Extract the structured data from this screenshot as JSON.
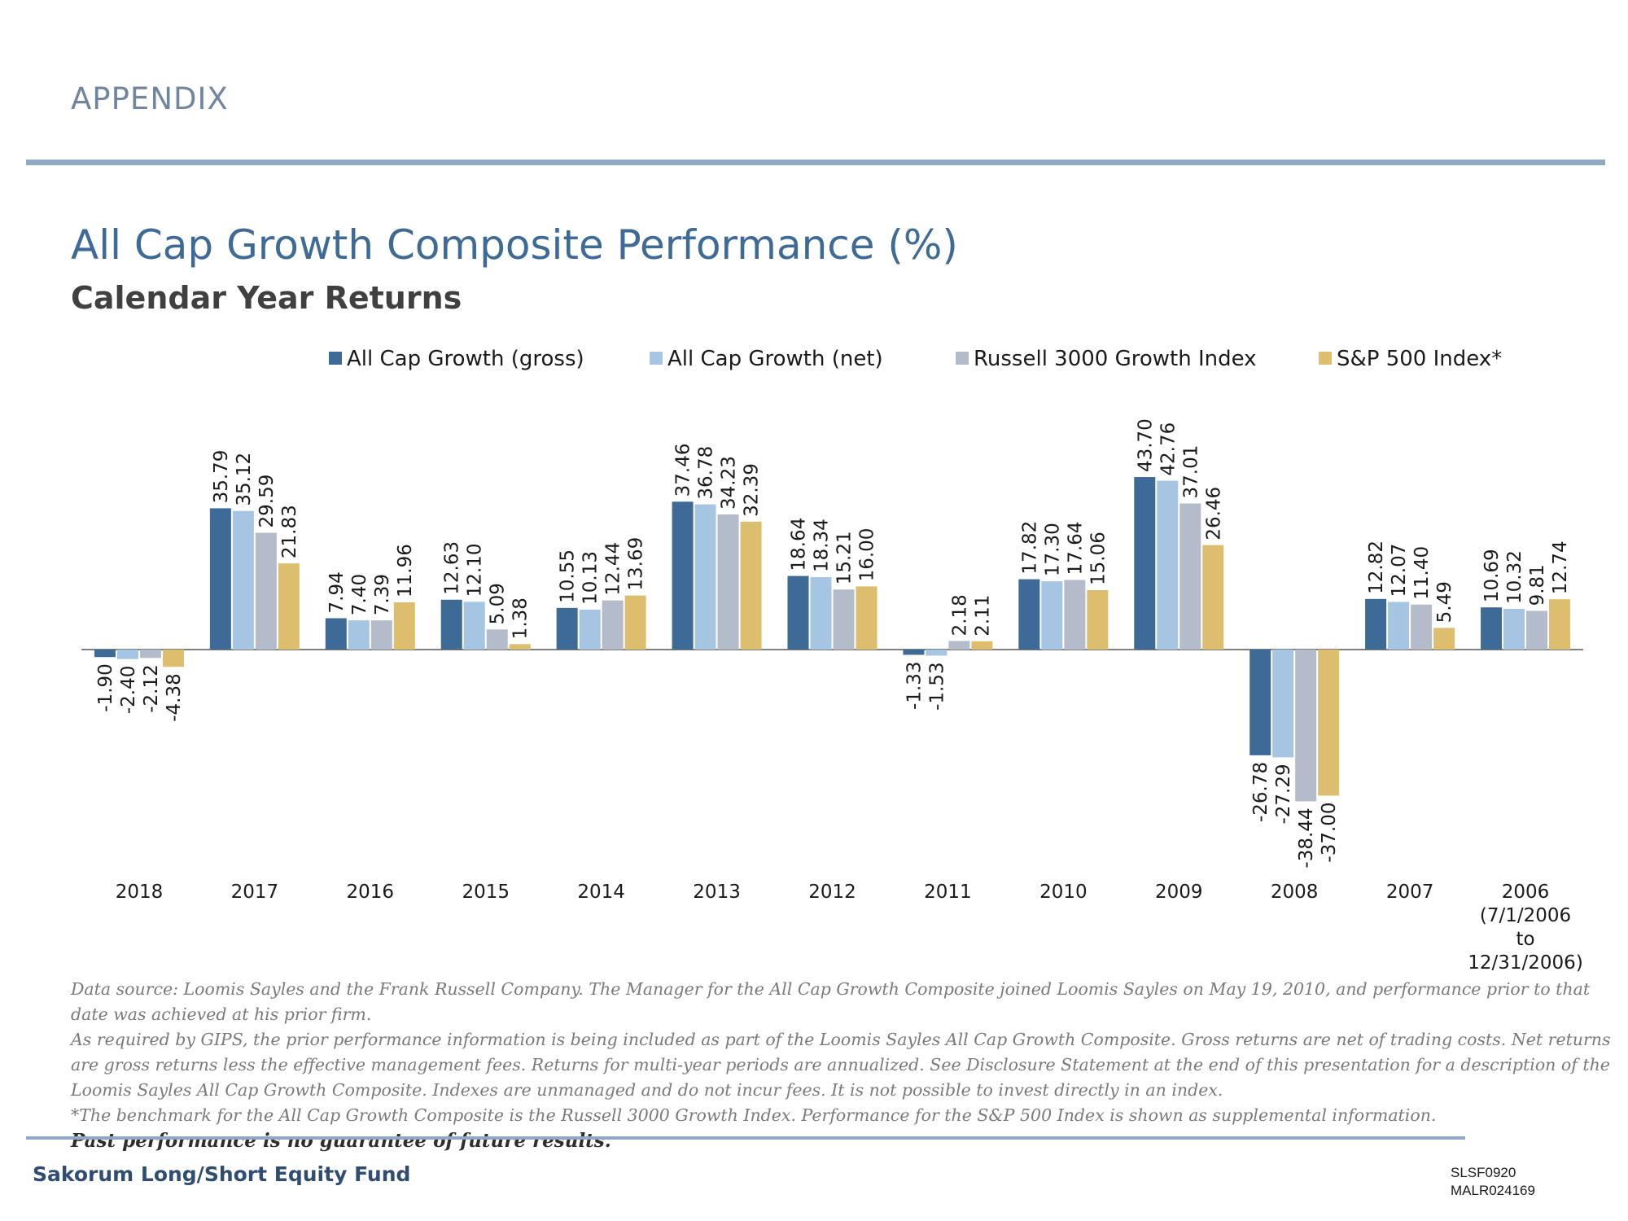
{
  "header": {
    "section_label": "APPENDIX",
    "title": "All Cap Growth Composite Performance (%)",
    "subtitle": "Calendar Year Returns"
  },
  "chart_data": {
    "type": "bar",
    "title": "All Cap Growth Composite Performance (%)",
    "subtitle": "Calendar Year Returns",
    "legend_position": "top",
    "grid": false,
    "ylim": [
      -40,
      46
    ],
    "categories": [
      "2018",
      "2017",
      "2016",
      "2015",
      "2014",
      "2013",
      "2012",
      "2011",
      "2010",
      "2009",
      "2008",
      "2007",
      "2006 (7/1/2006 to 12/31/2006)"
    ],
    "category_label_lines": [
      [
        "2018"
      ],
      [
        "2017"
      ],
      [
        "2016"
      ],
      [
        "2015"
      ],
      [
        "2014"
      ],
      [
        "2013"
      ],
      [
        "2012"
      ],
      [
        "2011"
      ],
      [
        "2010"
      ],
      [
        "2009"
      ],
      [
        "2008"
      ],
      [
        "2007"
      ],
      [
        "2006",
        "(7/1/2006",
        "to",
        "12/31/2006)"
      ]
    ],
    "series": [
      {
        "name": "All Cap Growth (gross)",
        "color": "#3e6a98",
        "values": [
          -1.9,
          35.79,
          7.94,
          12.63,
          10.55,
          37.46,
          18.64,
          -1.33,
          17.82,
          43.7,
          -26.78,
          12.82,
          10.69
        ],
        "labels": [
          "-1.90",
          "35.79",
          "7.94",
          "12.63",
          "10.55",
          "37.46",
          "18.64",
          "-1.33",
          "17.82",
          "43.70",
          "-26.78",
          "12.82",
          "10.69"
        ]
      },
      {
        "name": "All Cap Growth (net)",
        "color": "#a6c5e3",
        "values": [
          -2.4,
          35.12,
          7.4,
          12.1,
          10.13,
          36.78,
          18.34,
          -1.53,
          17.3,
          42.76,
          -27.29,
          12.07,
          10.32
        ],
        "labels": [
          "-2.40",
          "35.12",
          "7.40",
          "12.10",
          "10.13",
          "36.78",
          "18.34",
          "-1.53",
          "17.30",
          "42.76",
          "-27.29",
          "12.07",
          "10.32"
        ]
      },
      {
        "name": "Russell 3000 Growth Index",
        "color": "#b4bccb",
        "values": [
          -2.12,
          29.59,
          7.39,
          5.09,
          12.44,
          34.23,
          15.21,
          2.18,
          17.64,
          37.01,
          -38.44,
          11.4,
          9.81
        ],
        "labels": [
          "-2.12",
          "29.59",
          "7.39",
          "5.09",
          "12.44",
          "34.23",
          "15.21",
          "2.18",
          "17.64",
          "37.01",
          "-38.44",
          "11.40",
          "9.81"
        ]
      },
      {
        "name": "S&P 500 Index*",
        "color": "#dcbe6e",
        "values": [
          -4.38,
          21.83,
          11.96,
          1.38,
          13.69,
          32.39,
          16.0,
          2.11,
          15.06,
          26.46,
          -37.0,
          5.49,
          12.74
        ],
        "labels": [
          "-4.38",
          "21.83",
          "11.96",
          "1.38",
          "13.69",
          "32.39",
          "16.00",
          "2.11",
          "15.06",
          "26.46",
          "-37.00",
          "5.49",
          "12.74"
        ]
      }
    ]
  },
  "footnotes": {
    "line1": "Data source: Loomis Sayles and the Frank Russell Company. The Manager for the All Cap Growth Composite joined Loomis Sayles on May 19, 2010, and performance prior to that date was achieved at his prior firm.",
    "line2": "As required by GIPS, the prior performance information is being included as part of the Loomis Sayles All Cap Growth Composite. Gross returns are net of trading costs. Net returns are gross returns less the effective management fees. Returns for multi-year periods are annualized. See Disclosure Statement at the end of this presentation for a description of the Loomis Sayles All Cap Growth Composite. Indexes are unmanaged and do not incur fees. It is not possible to invest directly in an index.",
    "line3": "*The benchmark for the All Cap Growth Composite is the Russell 3000 Growth Index. Performance for the S&P 500 Index is shown as supplemental information.",
    "warning": "Past performance is no guarantee of future results."
  },
  "footer": {
    "fund_name": "Sakorum Long/Short Equity Fund",
    "code1": "SLSF0920",
    "code2": "MALR024169"
  }
}
